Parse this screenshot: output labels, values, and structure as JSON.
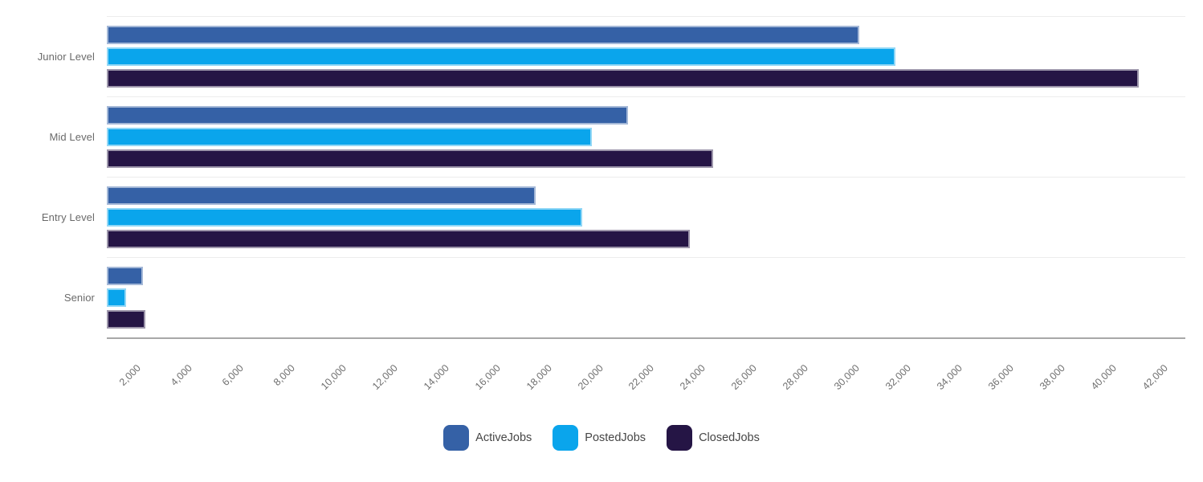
{
  "chart_data": {
    "type": "bar",
    "orientation": "horizontal",
    "title": "",
    "categories": [
      "Junior Level",
      "Mid Level",
      "Entry Level",
      "Senior"
    ],
    "series": [
      {
        "name": "ActiveJobs",
        "color": "#3561A6",
        "values": [
          29300,
          20300,
          16700,
          1400
        ]
      },
      {
        "name": "PostedJobs",
        "color": "#0AA5EC",
        "values": [
          30700,
          18900,
          18500,
          750
        ]
      },
      {
        "name": "ClosedJobs",
        "color": "#251545",
        "values": [
          40200,
          23600,
          22700,
          1500
        ]
      }
    ],
    "xlim": [
      0,
      42000
    ],
    "xtick_step": 2000,
    "xtick_labels": [
      "2,000",
      "4,000",
      "6,000",
      "8,000",
      "10,000",
      "12,000",
      "14,000",
      "16,000",
      "18,000",
      "20,000",
      "22,000",
      "24,000",
      "26,000",
      "28,000",
      "30,000",
      "32,000",
      "34,000",
      "36,000",
      "38,000",
      "40,000",
      "42,000"
    ],
    "xlabel": "",
    "ylabel": "",
    "grid": "horizontal-row-separators",
    "legend_position": "bottom-center",
    "legend_entries": [
      "ActiveJobs",
      "PostedJobs",
      "ClosedJobs"
    ]
  },
  "style_colors": {
    "background": "#ffffff",
    "axis_line": "#a8a8a8",
    "row_separator": "#ececec",
    "tick_text": "#6f6f6f",
    "category_text": "#6a6a6a",
    "legend_text": "#464646"
  }
}
